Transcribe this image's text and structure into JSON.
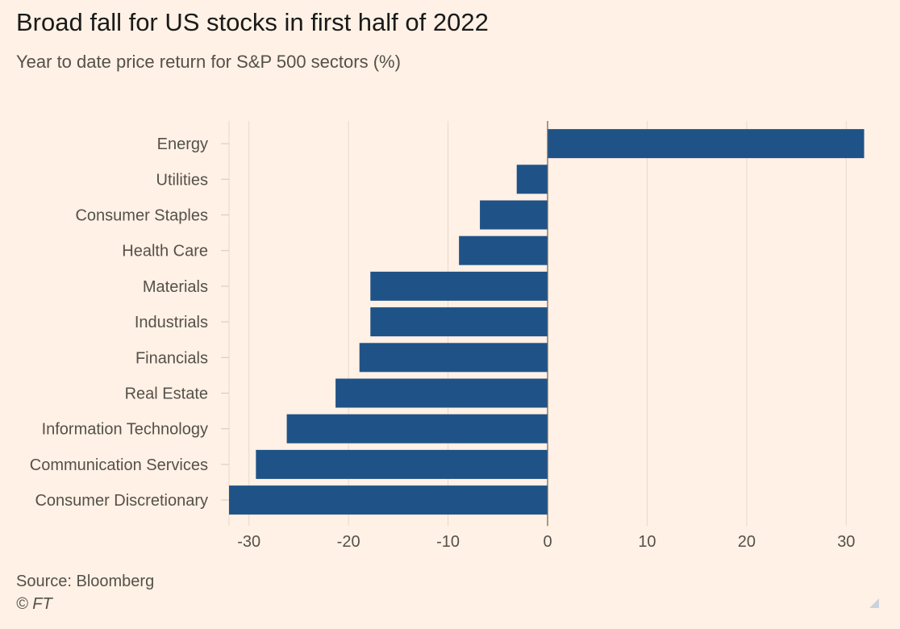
{
  "chart_data": {
    "type": "bar",
    "orientation": "horizontal",
    "title": "Broad fall for US stocks in first half of 2022",
    "subtitle": "Year to date price return for S&P 500 sectors (%)",
    "categories": [
      "Energy",
      "Utilities",
      "Consumer Staples",
      "Health Care",
      "Materials",
      "Industrials",
      "Financials",
      "Real Estate",
      "Information Technology",
      "Communication Services",
      "Consumer Discretionary"
    ],
    "values": [
      31.8,
      -3.1,
      -6.8,
      -8.9,
      -17.8,
      -17.8,
      -18.9,
      -21.3,
      -26.2,
      -29.3,
      -32.0
    ],
    "xlim": [
      -32,
      32
    ],
    "xticks": [
      -30,
      -20,
      -10,
      0,
      10,
      20,
      30
    ],
    "xtick_labels": [
      "-30",
      "-20",
      "-10",
      "0",
      "10",
      "20",
      "30"
    ],
    "bar_color": "#1f5388",
    "grid": true
  },
  "footer": {
    "source": "Source: Bloomberg",
    "credit": "© FT"
  },
  "colors": {
    "background": "#fff1e5",
    "bar": "#1f5388"
  }
}
